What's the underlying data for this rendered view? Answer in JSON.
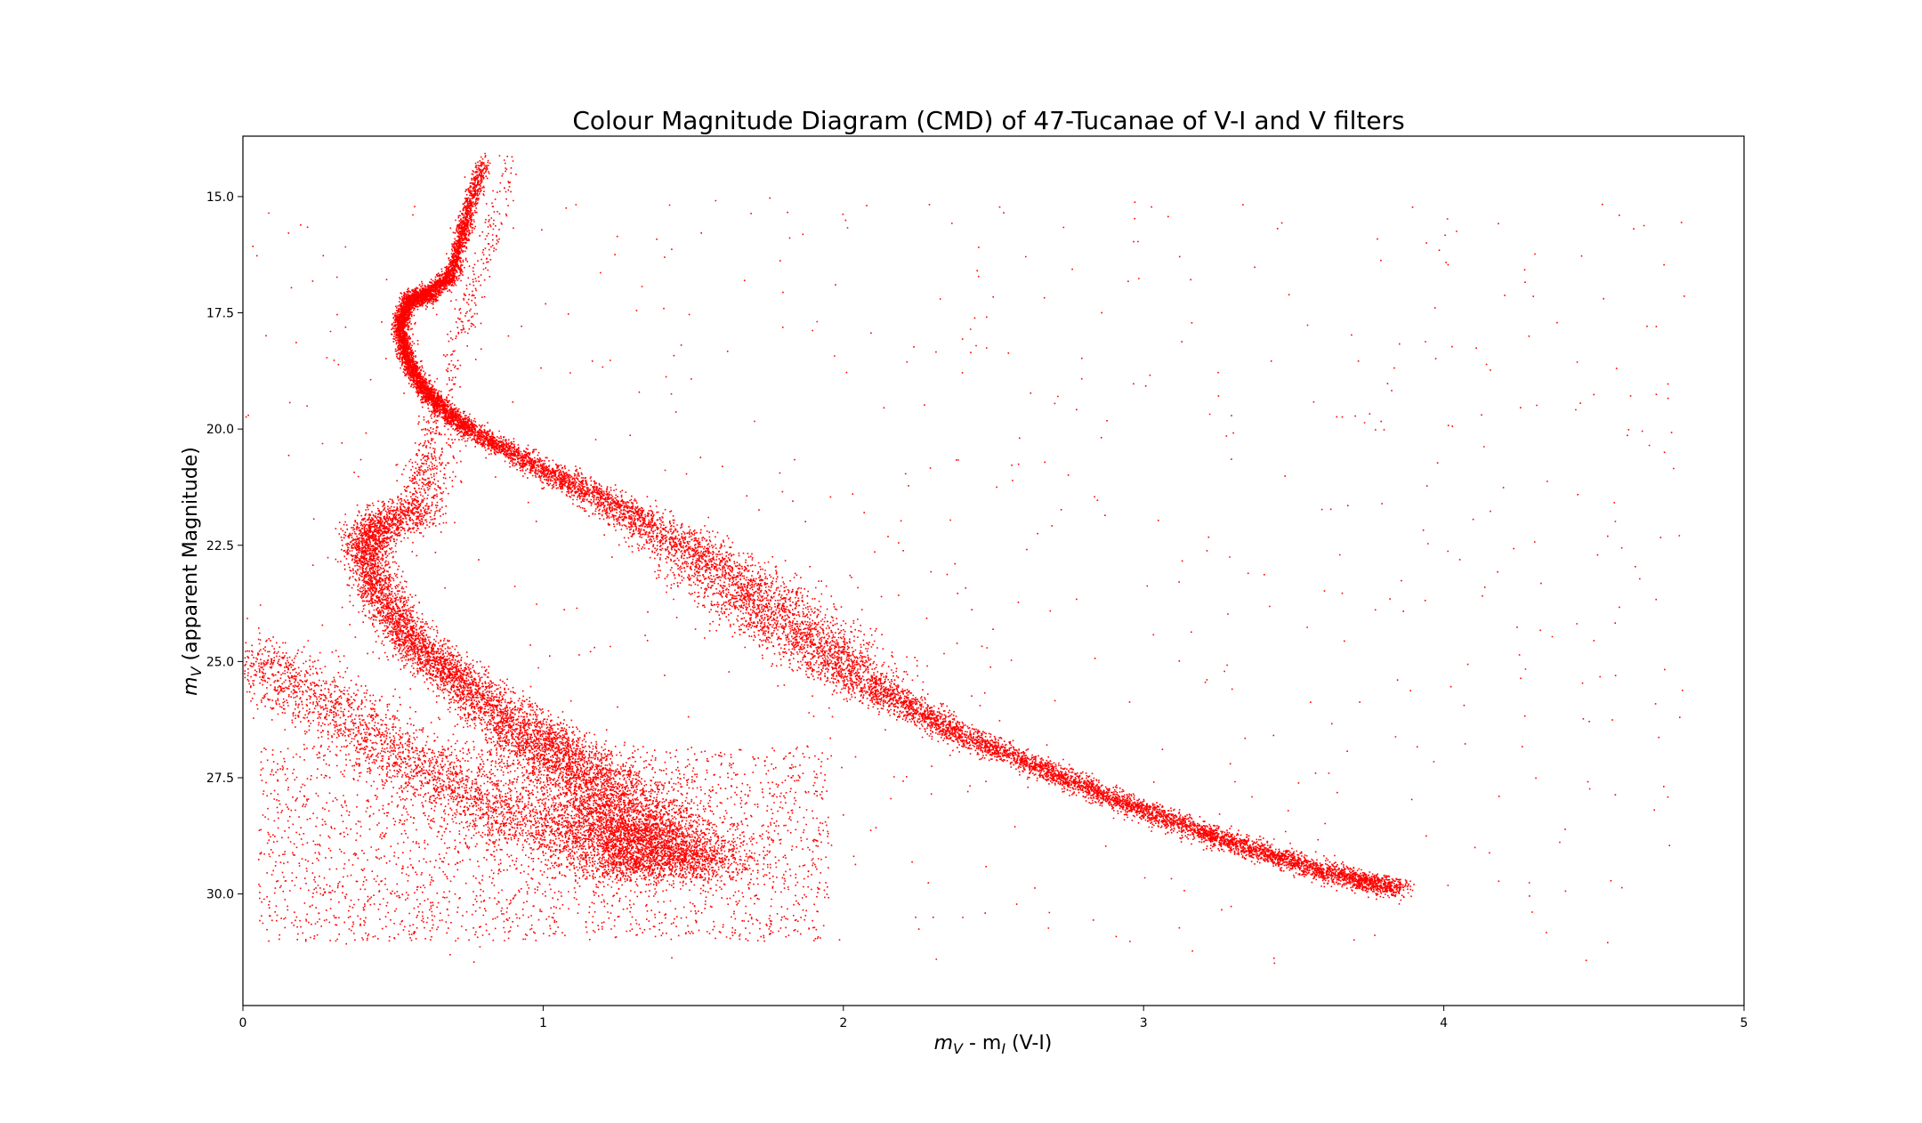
{
  "chart_data": {
    "type": "scatter",
    "title": "Colour Magnitude Diagram (CMD) of 47-Tucanae of V-I and V filters",
    "xlabel": {
      "m": "m",
      "sub1": "V",
      "mid": " - m",
      "sub2": "I",
      "tail": " (V-I)"
    },
    "ylabel": {
      "m": "m",
      "sub": "V",
      "tail": " (apparent Magnitude)"
    },
    "xlim": [
      0,
      5
    ],
    "ylim": [
      32.4,
      13.7
    ],
    "y_inverted": true,
    "xticks": [
      "0",
      "1",
      "2",
      "3",
      "4",
      "5"
    ],
    "yticks": [
      "15.0",
      "17.5",
      "20.0",
      "22.5",
      "25.0",
      "27.5",
      "30.0"
    ],
    "marker_color": "#ff0000",
    "grid": false,
    "legend": "none",
    "approx_points": 30000,
    "sequences": [
      {
        "name_on_chart": "",
        "description": "main sequence / giant branch of 47 Tucanae",
        "x": [
          0.8,
          0.74,
          0.7,
          0.62,
          0.55,
          0.52,
          0.55,
          0.62,
          0.75,
          0.95,
          1.2,
          1.5,
          1.7,
          1.9,
          2.1,
          2.4,
          2.7,
          3.0,
          3.3,
          3.6,
          3.85
        ],
        "y": [
          14.2,
          15.5,
          16.6,
          17.1,
          17.2,
          17.8,
          18.6,
          19.3,
          20.0,
          20.7,
          21.5,
          22.6,
          23.6,
          24.6,
          25.6,
          26.6,
          27.4,
          28.2,
          28.9,
          29.5,
          29.9
        ]
      },
      {
        "name_on_chart": "",
        "description": "SMC main sequence (background)",
        "x": [
          0.65,
          0.6,
          0.45,
          0.4,
          0.45,
          0.55,
          0.7,
          0.9,
          1.05,
          1.2,
          1.3,
          1.4,
          1.45
        ],
        "y": [
          20.0,
          21.8,
          22.0,
          22.5,
          23.5,
          24.5,
          25.3,
          26.3,
          27.0,
          27.8,
          28.5,
          29.0,
          29.5
        ]
      },
      {
        "name_on_chart": "",
        "description": "faint horizontal-branch band",
        "x": [
          0.0,
          0.2,
          0.4,
          0.6,
          0.8,
          1.0,
          1.2,
          1.4
        ],
        "y": [
          24.9,
          25.6,
          26.4,
          27.3,
          28.0,
          28.6,
          29.0,
          29.2
        ]
      }
    ]
  }
}
